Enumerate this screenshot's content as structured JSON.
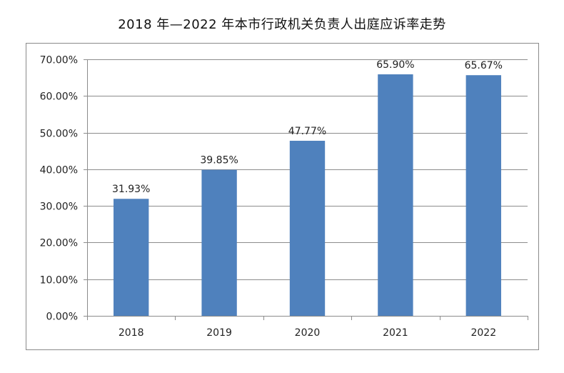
{
  "chart_data": {
    "type": "bar",
    "title": "2018 年—2022 年本市行政机关负责人出庭应诉率走势",
    "categories": [
      "2018",
      "2019",
      "2020",
      "2021",
      "2022"
    ],
    "values": [
      31.93,
      39.85,
      47.77,
      65.9,
      65.67
    ],
    "data_labels": [
      "31.93%",
      "39.85%",
      "47.77%",
      "65.90%",
      "65.67%"
    ],
    "ylim": [
      0,
      70
    ],
    "yticks": [
      0,
      10,
      20,
      30,
      40,
      50,
      60,
      70
    ],
    "ytick_labels": [
      "0.00%",
      "10.00%",
      "20.00%",
      "30.00%",
      "40.00%",
      "50.00%",
      "60.00%",
      "70.00%"
    ],
    "xlabel": "",
    "ylabel": "",
    "grid": true,
    "bar_color": "#4f81bd",
    "grid_color": "#8c8c8c"
  }
}
